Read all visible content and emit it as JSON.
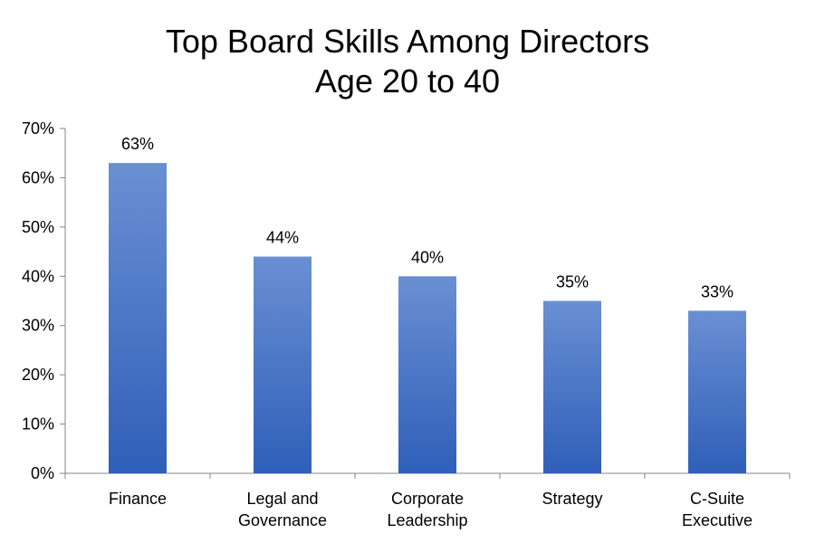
{
  "chart_data": {
    "type": "bar",
    "title": "Top Board Skills Among Directors",
    "subtitle": "Age 20 to 40",
    "categories": [
      [
        "Finance"
      ],
      [
        "Legal and",
        "Governance"
      ],
      [
        "Corporate",
        "Leadership"
      ],
      [
        "Strategy"
      ],
      [
        "C-Suite",
        "Executive"
      ]
    ],
    "values": [
      63,
      44,
      40,
      35,
      33
    ],
    "data_labels": [
      "63%",
      "44%",
      "40%",
      "35%",
      "33%"
    ],
    "y_ticks": [
      "0%",
      "10%",
      "20%",
      "30%",
      "40%",
      "50%",
      "60%",
      "70%"
    ],
    "ylim": [
      0,
      70
    ],
    "xlabel": "",
    "ylabel": "",
    "grid": false,
    "legend": "none",
    "bar_color_top": "#6a8fd3",
    "bar_color_bottom": "#2f5fb9"
  }
}
